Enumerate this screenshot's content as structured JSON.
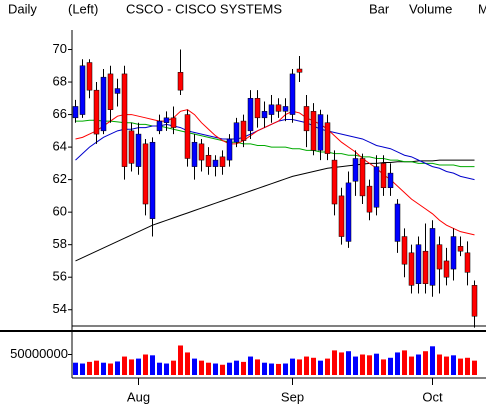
{
  "chart_data": {
    "type": "candlestick",
    "header": [
      {
        "text": "Daily",
        "color": "#000000"
      },
      {
        "text": "(Left)",
        "color": "#000000"
      },
      {
        "text": "CSCO - CISCO SYSTEMS",
        "color": "#000000"
      },
      {
        "text": "Bar",
        "color": "#000000"
      },
      {
        "text": "Volume",
        "color": "#00cc00"
      },
      {
        "text": "M",
        "color": "#ff0000"
      }
    ],
    "categories": [
      null,
      null,
      null,
      null,
      null,
      null,
      null,
      null,
      null,
      "Aug",
      null,
      null,
      null,
      null,
      null,
      null,
      null,
      null,
      null,
      null,
      null,
      null,
      null,
      null,
      null,
      null,
      null,
      null,
      null,
      null,
      null,
      "Sep",
      null,
      null,
      null,
      null,
      null,
      null,
      null,
      null,
      null,
      null,
      null,
      null,
      null,
      null,
      null,
      null,
      null,
      null,
      null,
      "Oct",
      null,
      null,
      null,
      null,
      null,
      null
    ],
    "open": [
      65.8,
      66,
      69.2,
      67.5,
      65,
      68.5,
      67.3,
      68.5,
      65,
      62.8,
      64.2,
      59.6,
      65,
      65.5,
      65.8,
      68.6,
      66,
      62.8,
      64.2,
      63.5,
      62.8,
      63.4,
      63.2,
      64.3,
      65.6,
      65,
      67,
      65.8,
      66,
      66.6,
      66.2,
      66,
      68.8,
      66.5,
      66.2,
      63.8,
      65.5,
      63.2,
      61,
      58.2,
      61.9,
      63.3,
      61.6,
      60.3,
      63,
      61.5,
      58.2,
      58.5,
      57.5,
      55.6,
      57.6,
      55.5,
      58,
      57,
      56.5,
      57.9,
      57.5,
      55.5
    ],
    "high": [
      66.9,
      69.4,
      69.4,
      68,
      68.8,
      69,
      68.2,
      69,
      65.5,
      65.5,
      64.5,
      64.6,
      66,
      66.2,
      66.5,
      70,
      66.3,
      64.8,
      64.5,
      64,
      63.5,
      63.8,
      64.8,
      65.8,
      66,
      67.5,
      67.5,
      66.8,
      67.2,
      67,
      67,
      68.8,
      69.6,
      67.2,
      66.7,
      66.3,
      66,
      63.8,
      61.5,
      62.5,
      63.8,
      63.6,
      62,
      63.5,
      63.5,
      63,
      60.8,
      59,
      58,
      58.5,
      59.3,
      59.5,
      58.5,
      57.8,
      59,
      58.5,
      58.2,
      55.8
    ],
    "low": [
      65.5,
      65.8,
      67,
      64.2,
      64.8,
      65.5,
      66.5,
      62,
      62.5,
      62.3,
      59.8,
      58.5,
      64.8,
      65,
      64.8,
      67.2,
      62.8,
      62,
      62.5,
      62.3,
      62.2,
      62.3,
      62.8,
      64,
      64,
      64.5,
      65.2,
      65.2,
      65.5,
      65.8,
      65.6,
      65.5,
      68,
      64,
      63.5,
      63.2,
      63.2,
      59.8,
      58,
      57.8,
      61,
      60.5,
      59.5,
      59.8,
      61,
      61,
      57.5,
      56,
      55,
      55,
      55,
      54.8,
      55,
      55.5,
      55.8,
      57.3,
      55.5,
      52.9
    ],
    "close": [
      66.5,
      69,
      67.5,
      64.8,
      68.3,
      66.3,
      67.6,
      62.8,
      63,
      64.8,
      60.5,
      64.3,
      65.6,
      65.8,
      65.2,
      67.5,
      63.3,
      64.3,
      63.2,
      62.8,
      63.2,
      62.8,
      64.5,
      65.5,
      64.4,
      67,
      65.8,
      66.2,
      66.6,
      66.2,
      66.5,
      68.5,
      68.6,
      65,
      63.8,
      66,
      63.6,
      60.5,
      58.5,
      61.8,
      63.3,
      61,
      60,
      62.8,
      61.5,
      62.4,
      60.5,
      56.8,
      55.5,
      58,
      55.6,
      59,
      56.5,
      56,
      58.5,
      57.6,
      56.3,
      53.6
    ],
    "up_color": "#0000ff",
    "down_color": "#ff0000",
    "ylim": [
      53,
      71.2
    ],
    "yticks": [
      54,
      56,
      58,
      60,
      62,
      64,
      66,
      68,
      70
    ],
    "overlays": [
      {
        "color": "#000000",
        "values": [
          57.0,
          57.2,
          57.4,
          57.6,
          57.8,
          58.0,
          58.2,
          58.4,
          58.6,
          58.8,
          59.0,
          59.2,
          59.35,
          59.5,
          59.65,
          59.8,
          59.95,
          60.1,
          60.25,
          60.4,
          60.55,
          60.7,
          60.85,
          61.0,
          61.15,
          61.3,
          61.45,
          61.6,
          61.75,
          61.9,
          62.05,
          62.2,
          62.3,
          62.4,
          62.5,
          62.6,
          62.7,
          62.75,
          62.8,
          62.85,
          62.9,
          62.95,
          63.0,
          63.0,
          63.05,
          63.05,
          63.1,
          63.1,
          63.1,
          63.15,
          63.15,
          63.15,
          63.2,
          63.2,
          63.2,
          63.2,
          63.2,
          63.2
        ]
      },
      {
        "color": "#00aa00",
        "values": [
          65.6,
          65.6,
          65.65,
          65.65,
          65.6,
          65.6,
          65.55,
          65.5,
          65.5,
          65.4,
          65.4,
          65.3,
          65.3,
          65.2,
          65.1,
          65.0,
          64.9,
          64.8,
          64.7,
          64.6,
          64.5,
          64.4,
          64.3,
          64.3,
          64.2,
          64.2,
          64.1,
          64.1,
          64.0,
          64.0,
          64.0,
          63.9,
          63.9,
          63.8,
          63.8,
          63.7,
          63.7,
          63.6,
          63.6,
          63.5,
          63.5,
          63.4,
          63.4,
          63.3,
          63.3,
          63.2,
          63.2,
          63.1,
          63.1,
          63.0,
          63.0,
          63.0,
          62.9,
          62.9,
          62.9,
          62.8,
          62.8,
          62.8
        ]
      },
      {
        "color": "#0000cc",
        "values": [
          63.2,
          63.6,
          64.0,
          64.3,
          64.6,
          64.8,
          65.0,
          65.1,
          65.1,
          65.2,
          65.2,
          65.3,
          65.3,
          65.4,
          65.3,
          65.2,
          65.0,
          64.9,
          64.8,
          64.7,
          64.6,
          64.5,
          64.5,
          64.5,
          64.6,
          64.8,
          65.0,
          65.2,
          65.4,
          65.6,
          65.7,
          65.7,
          65.6,
          65.5,
          65.3,
          65.1,
          65.0,
          64.9,
          64.8,
          64.7,
          64.6,
          64.5,
          64.3,
          64.1,
          64.0,
          63.9,
          63.7,
          63.5,
          63.4,
          63.2,
          63.0,
          62.8,
          62.7,
          62.5,
          62.4,
          62.2,
          62.1,
          62.0
        ]
      },
      {
        "color": "#ff0000",
        "values": [
          64.5,
          64.6,
          64.8,
          65.0,
          65.3,
          65.6,
          65.9,
          66.0,
          66.0,
          65.9,
          65.8,
          65.7,
          65.6,
          65.6,
          65.8,
          66.2,
          66.3,
          66.0,
          65.5,
          65.1,
          64.7,
          64.4,
          64.2,
          64.2,
          64.4,
          64.7,
          65.0,
          65.2,
          65.4,
          65.6,
          66.0,
          66.2,
          66.1,
          65.8,
          65.6,
          65.4,
          65.1,
          64.7,
          64.3,
          64.0,
          63.7,
          63.3,
          63.0,
          62.7,
          62.3,
          62.0,
          61.6,
          61.2,
          60.8,
          60.5,
          60.2,
          59.9,
          59.5,
          59.2,
          59.0,
          58.8,
          58.7,
          58.6
        ]
      }
    ],
    "volume": {
      "values": [
        30000000,
        28000000,
        32000000,
        35000000,
        30000000,
        28000000,
        33000000,
        45000000,
        38000000,
        40000000,
        50000000,
        48000000,
        30000000,
        28000000,
        35000000,
        72000000,
        55000000,
        40000000,
        35000000,
        30000000,
        28000000,
        25000000,
        30000000,
        35000000,
        32000000,
        45000000,
        38000000,
        30000000,
        28000000,
        27000000,
        28000000,
        40000000,
        38000000,
        45000000,
        42000000,
        35000000,
        40000000,
        60000000,
        55000000,
        58000000,
        45000000,
        50000000,
        48000000,
        52000000,
        38000000,
        42000000,
        55000000,
        60000000,
        45000000,
        50000000,
        58000000,
        70000000,
        50000000,
        45000000,
        48000000,
        40000000,
        42000000,
        35000000
      ],
      "ylim": [
        0,
        100000000
      ],
      "yticks": [
        50000000
      ]
    }
  }
}
